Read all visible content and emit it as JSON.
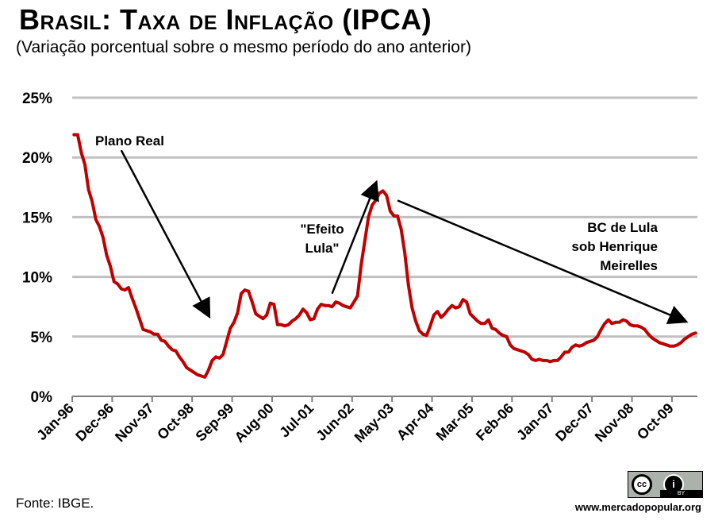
{
  "header": {
    "title": "Brasil: Taxa de Inflação (IPCA)",
    "subtitle": "(Variação porcentual sobre o mesmo período do ano anterior)"
  },
  "footer": {
    "source": "Fonte: IBGE.",
    "website": "www.mercadopopular.org",
    "license_badge": {
      "cc": "cc",
      "by_icon": "person-icon",
      "by": "BY",
      "background": "#aab2ab"
    }
  },
  "chart_data": {
    "type": "line",
    "title": "Brasil: Taxa de Inflação (IPCA)",
    "subtitle": "(Variação porcentual sobre o mesmo período do ano anterior)",
    "xlabel": "",
    "ylabel": "",
    "ylim": [
      0,
      25
    ],
    "yticks": [
      "0%",
      "5%",
      "10%",
      "15%",
      "20%",
      "25%"
    ],
    "xticks": [
      "Jan-96",
      "Dec-96",
      "Nov-97",
      "Oct-98",
      "Sep-99",
      "Aug-00",
      "Jul-01",
      "Jun-02",
      "May-03",
      "Apr-04",
      "Mar-05",
      "Feb-06",
      "Jan-07",
      "Dec-07",
      "Nov-08",
      "Oct-09"
    ],
    "grid": "horizontal",
    "legend": "none",
    "x_start": "Jan-96",
    "x_end": "Apr-10",
    "series": [
      {
        "color": "#c00000",
        "values": [
          21.9,
          21.9,
          20.4,
          19.4,
          17.3,
          16.3,
          14.8,
          14.2,
          13.3,
          11.8,
          10.9,
          9.6,
          9.4,
          9.0,
          8.9,
          9.1,
          8.2,
          7.4,
          6.5,
          5.6,
          5.5,
          5.4,
          5.2,
          5.2,
          4.7,
          4.6,
          4.2,
          3.9,
          3.8,
          3.3,
          2.9,
          2.4,
          2.2,
          2.0,
          1.8,
          1.7,
          1.6,
          2.2,
          3.0,
          3.3,
          3.2,
          3.5,
          4.6,
          5.7,
          6.2,
          7.0,
          8.6,
          8.9,
          8.8,
          7.9,
          6.9,
          6.7,
          6.5,
          6.8,
          7.8,
          7.7,
          6.0,
          6.0,
          5.9,
          6.0,
          6.3,
          6.5,
          6.8,
          7.3,
          7.0,
          6.4,
          6.5,
          7.3,
          7.7,
          7.6,
          7.6,
          7.5,
          7.9,
          7.8,
          7.6,
          7.5,
          7.4,
          7.9,
          8.4,
          11.0,
          13.0,
          15.0,
          16.0,
          16.4,
          17.0,
          17.2,
          16.8,
          15.5,
          15.1,
          15.1,
          14.0,
          12.0,
          9.3,
          7.4,
          6.3,
          5.5,
          5.2,
          5.1,
          5.9,
          6.8,
          7.1,
          6.6,
          6.9,
          7.3,
          7.6,
          7.4,
          7.5,
          8.1,
          7.9,
          6.9,
          6.6,
          6.3,
          6.1,
          6.1,
          6.4,
          5.7,
          5.6,
          5.3,
          5.1,
          5.0,
          4.3,
          4.0,
          3.9,
          3.8,
          3.7,
          3.5,
          3.1,
          3.0,
          3.1,
          3.0,
          3.0,
          2.9,
          3.0,
          3.0,
          3.3,
          3.7,
          3.7,
          4.1,
          4.3,
          4.2,
          4.3,
          4.5,
          4.6,
          4.7,
          5.0,
          5.6,
          6.1,
          6.4,
          6.1,
          6.2,
          6.2,
          6.4,
          6.3,
          6.0,
          5.9,
          5.9,
          5.8,
          5.6,
          5.2,
          4.9,
          4.7,
          4.5,
          4.4,
          4.3,
          4.2,
          4.2,
          4.3,
          4.5,
          4.8,
          5.0,
          5.2,
          5.3
        ]
      }
    ],
    "annotations": [
      {
        "lines": [
          "Plano Real"
        ],
        "arrow": {
          "from": [
            "Feb-97",
            20.6
          ],
          "to": [
            "Feb-99",
            6.8
          ]
        }
      },
      {
        "lines": [
          "\"Efeito",
          "Lula\""
        ],
        "arrow": {
          "from": [
            "Dec-01",
            8.6
          ],
          "to": [
            "Dec-02",
            17.8
          ]
        }
      },
      {
        "lines": [
          "BC de Lula",
          "sob Henrique",
          "Meirelles"
        ],
        "arrow": {
          "from": [
            "Jun-03",
            16.4
          ],
          "to": [
            "Jan-10",
            6.3
          ]
        }
      }
    ]
  }
}
